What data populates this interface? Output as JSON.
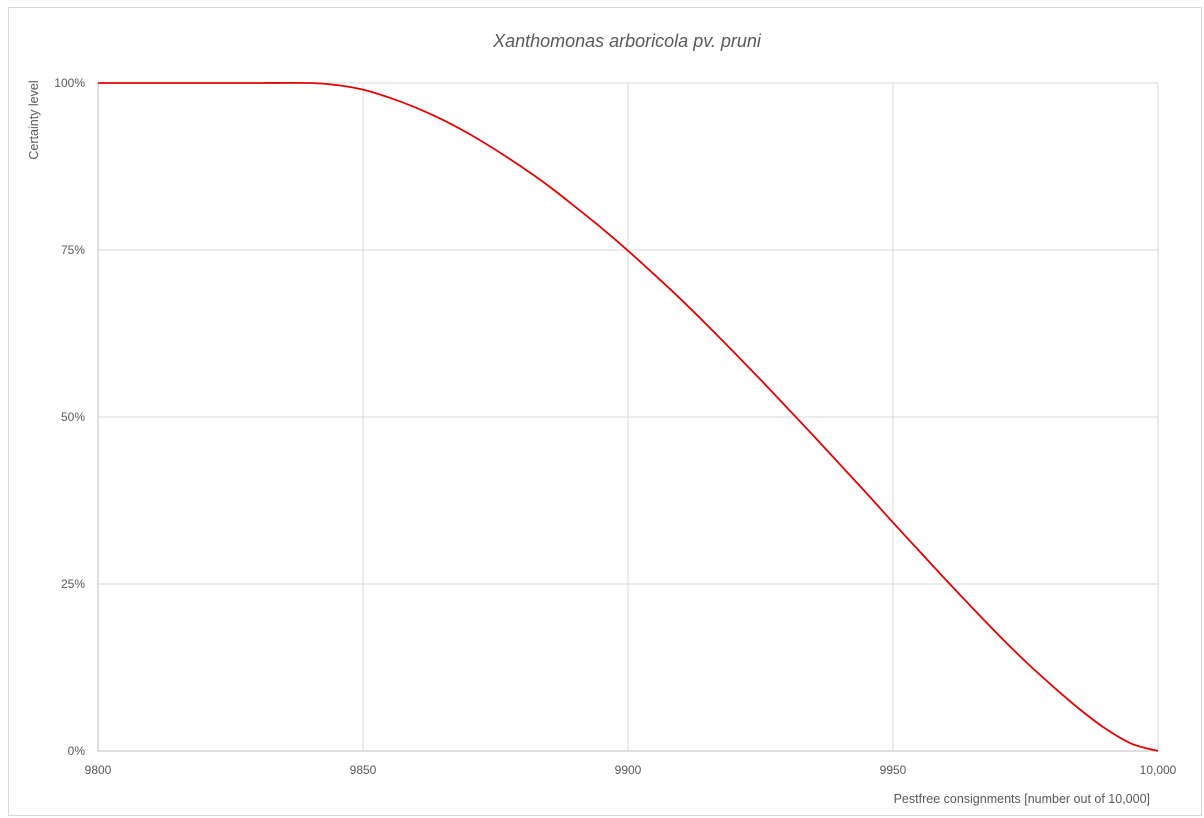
{
  "chart_data": {
    "type": "line",
    "title": "Xanthomonas arboricola pv. pruni",
    "xlabel": "Pestfree consignments [number out of 10,000]",
    "ylabel": "Certainty level",
    "xlim": [
      9800,
      10000
    ],
    "ylim": [
      0,
      100
    ],
    "x_ticks": [
      9800,
      9850,
      9900,
      9950,
      10000
    ],
    "x_tick_labels": [
      "9800",
      "9850",
      "9900",
      "9950",
      "10,000"
    ],
    "y_ticks": [
      0,
      25,
      50,
      75,
      100
    ],
    "y_tick_labels": [
      "0%",
      "25%",
      "50%",
      "75%",
      "100%"
    ],
    "grid": true,
    "line_color": "#e60000",
    "series": [
      {
        "x": [
          9800,
          9810,
          9820,
          9830,
          9840,
          9845,
          9850,
          9855,
          9860,
          9865,
          9870,
          9875,
          9880,
          9885,
          9890,
          9895,
          9900,
          9905,
          9910,
          9915,
          9920,
          9925,
          9930,
          9935,
          9940,
          9945,
          9950,
          9955,
          9960,
          9965,
          9970,
          9975,
          9980,
          9985,
          9990,
          9995,
          10000
        ],
        "values": [
          100,
          100,
          100,
          100,
          100,
          99.7,
          99.0,
          97.8,
          96.3,
          94.5,
          92.4,
          90.0,
          87.4,
          84.6,
          81.5,
          78.3,
          74.9,
          71.3,
          67.6,
          63.7,
          59.7,
          55.6,
          51.4,
          47.2,
          42.9,
          38.6,
          34.2,
          29.9,
          25.6,
          21.4,
          17.3,
          13.4,
          9.8,
          6.4,
          3.4,
          1.1,
          0
        ]
      }
    ]
  }
}
